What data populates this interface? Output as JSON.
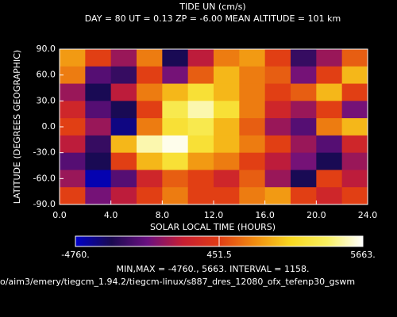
{
  "chart_data": {
    "type": "heatmap",
    "title": "TIDE UN (cm/s)",
    "subtitle": "DAY =  80  UT =  0.13  ZP =  -6.00  MEAN ALTITUDE = 101 km",
    "xlabel": "SOLAR LOCAL TIME (HOURS)",
    "ylabel": "LATITUDE (DEGREES GEOGRAPHIC)",
    "x": [
      1,
      3,
      5,
      7,
      9,
      11,
      13,
      15,
      17,
      19,
      21,
      23
    ],
    "y": [
      80,
      60,
      40,
      20,
      0,
      -20,
      -40,
      -60,
      -80
    ],
    "values": [
      [
        2000,
        500,
        -1500,
        1500,
        -3500,
        -1000,
        1500,
        2000,
        500,
        -3000,
        -1500,
        1000
      ],
      [
        1500,
        -2500,
        -3000,
        500,
        -2000,
        1000,
        2500,
        1500,
        1000,
        -2000,
        500,
        2500
      ],
      [
        -1500,
        -3500,
        -1000,
        1500,
        2500,
        3500,
        2500,
        1500,
        500,
        1000,
        2500,
        500
      ],
      [
        -500,
        -2500,
        -3500,
        500,
        4000,
        5000,
        3500,
        1500,
        -500,
        -1500,
        500,
        -2000
      ],
      [
        500,
        -1500,
        -4000,
        1500,
        3500,
        4000,
        2500,
        1000,
        -1500,
        -2500,
        1500,
        2500
      ],
      [
        -1000,
        -3000,
        2500,
        5000,
        5500,
        3500,
        2500,
        1500,
        500,
        -1500,
        -2500,
        -500
      ],
      [
        -2500,
        -3500,
        500,
        2500,
        3500,
        2000,
        1500,
        500,
        -1000,
        -2000,
        -3500,
        -1500
      ],
      [
        -1500,
        -4500,
        -2500,
        -500,
        1000,
        500,
        -500,
        1000,
        -1500,
        -3500,
        500,
        -1000
      ],
      [
        500,
        -2000,
        -1000,
        500,
        1500,
        500,
        500,
        1500,
        2000,
        500,
        -500,
        500
      ]
    ],
    "xlim": [
      0,
      24
    ],
    "xticks": [
      {
        "value": 0,
        "label": "0.0"
      },
      {
        "value": 4,
        "label": "4.0"
      },
      {
        "value": 8,
        "label": "8.0"
      },
      {
        "value": 12,
        "label": "12.0"
      },
      {
        "value": 16,
        "label": "16.0"
      },
      {
        "value": 20,
        "label": "20.0"
      },
      {
        "value": 24,
        "label": "24.0"
      }
    ],
    "ylim": [
      -90,
      90
    ],
    "yticks": [
      {
        "value": -90,
        "label": "-90.0"
      },
      {
        "value": -60,
        "label": "-60.0"
      },
      {
        "value": -30,
        "label": "-30.0"
      },
      {
        "value": 0,
        "label": "0.0"
      },
      {
        "value": 30,
        "label": "30.0"
      },
      {
        "value": 60,
        "label": "60.0"
      },
      {
        "value": 90,
        "label": "90.0"
      }
    ],
    "clim": [
      -4760,
      5663
    ],
    "cticks": [
      {
        "value": -4760,
        "label": "-4760."
      },
      451.5,
      {
        "value": 5663,
        "label": "5663."
      }
    ],
    "colorscale": [
      "#0000c8",
      "#1a0a50",
      "#6a1080",
      "#c81e32",
      "#e03c14",
      "#f08c10",
      "#f8d820",
      "#f8f060",
      "#ffffff"
    ],
    "stats": "MIN,MAX =      -4760.,      5663. INTERVAL =      1158.",
    "file": "o/aim3/emery/tiegcm_1.94.2/tiegcm-linux/s887_dres_12080_ofx_tefenp30_gswm"
  }
}
